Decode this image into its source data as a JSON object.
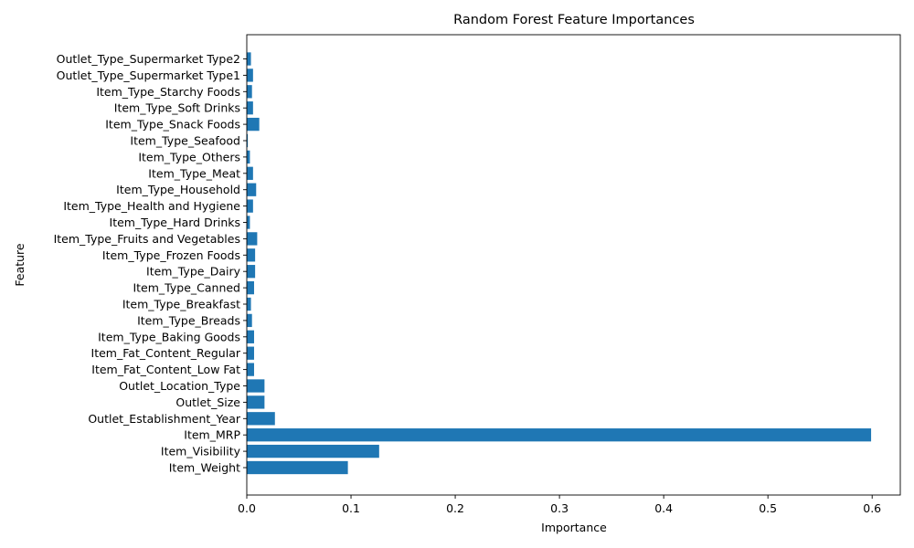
{
  "chart_data": {
    "type": "bar",
    "orientation": "horizontal",
    "title": "Random Forest Feature Importances",
    "xlabel": "Importance",
    "ylabel": "Feature",
    "xlim": [
      0,
      0.627
    ],
    "xticks": [
      0.0,
      0.1,
      0.2,
      0.3,
      0.4,
      0.5,
      0.6
    ],
    "xtick_labels": [
      "0.0",
      "0.1",
      "0.2",
      "0.3",
      "0.4",
      "0.5",
      "0.6"
    ],
    "grid": false,
    "bar_color": "#1f77b4",
    "categories": [
      "Item_Weight",
      "Item_Visibility",
      "Item_MRP",
      "Outlet_Establishment_Year",
      "Outlet_Size",
      "Outlet_Location_Type",
      "Item_Fat_Content_Low Fat",
      "Item_Fat_Content_Regular",
      "Item_Type_Baking Goods",
      "Item_Type_Breads",
      "Item_Type_Breakfast",
      "Item_Type_Canned",
      "Item_Type_Dairy",
      "Item_Type_Frozen Foods",
      "Item_Type_Fruits and Vegetables",
      "Item_Type_Hard Drinks",
      "Item_Type_Health and Hygiene",
      "Item_Type_Household",
      "Item_Type_Meat",
      "Item_Type_Others",
      "Item_Type_Seafood",
      "Item_Type_Snack Foods",
      "Item_Type_Soft Drinks",
      "Item_Type_Starchy Foods",
      "Outlet_Type_Supermarket Type1",
      "Outlet_Type_Supermarket Type2"
    ],
    "values": [
      0.097,
      0.127,
      0.599,
      0.027,
      0.017,
      0.017,
      0.007,
      0.007,
      0.007,
      0.005,
      0.004,
      0.007,
      0.008,
      0.008,
      0.01,
      0.003,
      0.006,
      0.009,
      0.006,
      0.003,
      0.001,
      0.012,
      0.006,
      0.005,
      0.006,
      0.004
    ]
  }
}
